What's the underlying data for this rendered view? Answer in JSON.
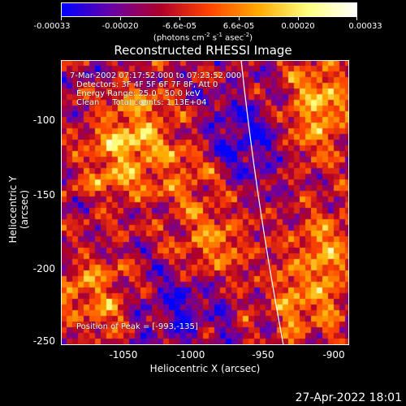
{
  "colorbar": {
    "ticks": [
      "-0.00033",
      "-0.00020",
      "-6.6e-05",
      "6.6e-05",
      "0.00020",
      "0.00033"
    ],
    "units_prefix": "(photons cm",
    "units_sup1": "-2",
    "units_mid": " s",
    "units_sup2": "-1",
    "units_mid2": " asec",
    "units_sup3": "-2",
    "units_suffix": ")"
  },
  "title": "Reconstructed RHESSI Image",
  "info": {
    "time_range": "7-Mar-2002 07:17:52.000 to 07:23:52.000",
    "detectors": "Detectors: 3F 4F 5F 6F 7F 8F, Att 0",
    "energy": "Energy Range: 25.0 - 50.0 keV",
    "method": "Clean     Total counts: 1.13E+04",
    "peak": "Position of Peak = [-993,-135]"
  },
  "axes": {
    "xlabel": "Heliocentric X (arcsec)",
    "ylabel": "Heliocentric Y (arcsec)",
    "xticks": [
      "-1050",
      "-1000",
      "-950",
      "-900"
    ],
    "yticks": [
      "-100",
      "-150",
      "-200",
      "-250"
    ]
  },
  "footer": "27-Apr-2022 18:01",
  "colors": {
    "cmap": [
      "#0000ff",
      "#6a00a8",
      "#b0002a",
      "#ff4400",
      "#ffaa00",
      "#ffff80",
      "#ffffff"
    ],
    "limb": "#ffffff"
  }
}
